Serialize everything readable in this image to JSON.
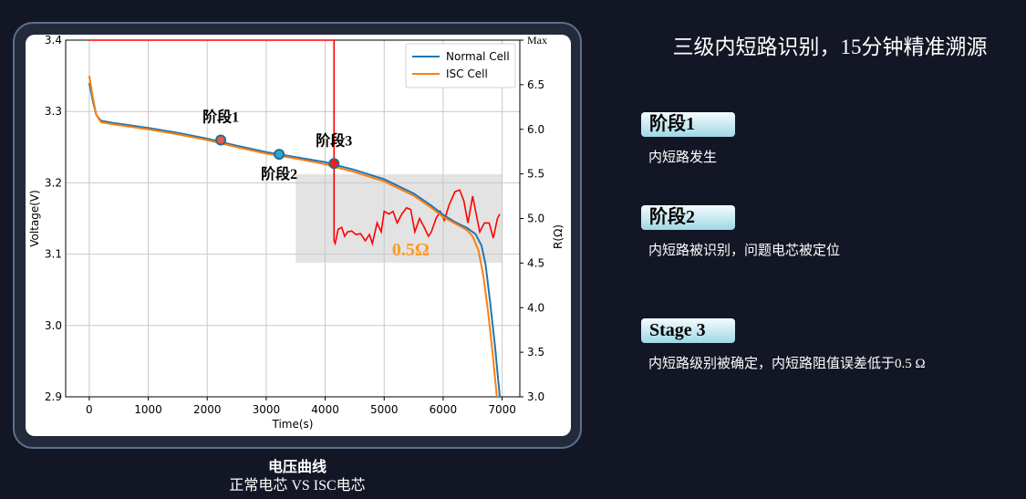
{
  "title": "三级内短路识别，15分钟精准溯源",
  "caption": {
    "title": "电压曲线",
    "subtitle": "正常电芯 VS ISC电芯"
  },
  "stages": [
    {
      "badge": "阶段1",
      "desc": "内短路发生"
    },
    {
      "badge": "阶段2",
      "desc": "内短路被识别，问题电芯被定位"
    },
    {
      "badge": "Stage 3",
      "desc": "内短路级别被确定，内短路阻值误差低于0.5 Ω"
    }
  ],
  "colors": {
    "normal": "#1f77b4",
    "isc": "#ff7f0e",
    "resistance": "#ff0000",
    "annotation": "#ff9a1f",
    "badge": "#a6dbe8"
  },
  "chart_data": {
    "type": "line",
    "xlabel": "Time(s)",
    "ylabel": "Voltage(V)",
    "y2label": "R(Ω)",
    "xlim": [
      -400,
      7300
    ],
    "ylim": [
      2.9,
      3.4
    ],
    "y2lim": [
      3.0,
      7.0
    ],
    "xticks": [
      "0",
      "1000",
      "2000",
      "3000",
      "4000",
      "5000",
      "6000",
      "7000"
    ],
    "yticks": [
      "2.9",
      "3.0",
      "3.1",
      "3.2",
      "3.3",
      "3.4"
    ],
    "y2ticks": [
      "3.0",
      "3.5",
      "4.0",
      "4.5",
      "5.0",
      "5.5",
      "6.0",
      "6.5",
      "Max"
    ],
    "grid": true,
    "legend": "top-right",
    "series": [
      {
        "name": "Normal Cell",
        "axis": "left",
        "x": [
          0,
          60,
          120,
          200,
          400,
          1000,
          1500,
          2000,
          2500,
          3000,
          3500,
          4000,
          4500,
          5000,
          5500,
          5800,
          6000,
          6200,
          6400,
          6550,
          6650,
          6720,
          6800,
          6880,
          6960
        ],
        "y": [
          3.34,
          3.315,
          3.295,
          3.287,
          3.284,
          3.277,
          3.27,
          3.262,
          3.252,
          3.243,
          3.236,
          3.229,
          3.218,
          3.205,
          3.185,
          3.168,
          3.155,
          3.145,
          3.137,
          3.128,
          3.112,
          3.085,
          3.03,
          2.97,
          2.9
        ]
      },
      {
        "name": "ISC Cell",
        "axis": "left",
        "x": [
          0,
          60,
          120,
          200,
          400,
          1000,
          1500,
          2000,
          2500,
          3000,
          3500,
          4000,
          4500,
          5000,
          5500,
          5800,
          6000,
          6200,
          6400,
          6500,
          6600,
          6680,
          6760,
          6840,
          6910
        ],
        "y": [
          3.35,
          3.32,
          3.295,
          3.285,
          3.282,
          3.275,
          3.268,
          3.26,
          3.25,
          3.241,
          3.234,
          3.226,
          3.215,
          3.202,
          3.182,
          3.165,
          3.152,
          3.143,
          3.134,
          3.125,
          3.105,
          3.07,
          3.02,
          2.96,
          2.9
        ]
      },
      {
        "name": "",
        "axis": "right",
        "x": [
          0,
          4150,
          4150,
          4170,
          4220,
          4280,
          4330,
          4380,
          4450,
          4520,
          4600,
          4680,
          4750,
          4800,
          4880,
          4950,
          5000,
          5080,
          5150,
          5220,
          5300,
          5380,
          5450,
          5520,
          5600,
          5680,
          5750,
          5800,
          5880,
          5950,
          6020,
          6100,
          6200,
          6280,
          6350,
          6420,
          6500,
          6560,
          6620,
          6700,
          6780,
          6850,
          6920,
          6960
        ],
        "y": [
          7.0,
          7.0,
          4.75,
          4.72,
          4.88,
          4.9,
          4.8,
          4.85,
          4.86,
          4.82,
          4.83,
          4.75,
          4.82,
          4.72,
          4.95,
          4.85,
          5.08,
          5.05,
          5.08,
          4.95,
          5.05,
          5.12,
          5.1,
          4.85,
          5.0,
          4.9,
          4.8,
          4.85,
          5.0,
          5.08,
          4.98,
          5.15,
          5.3,
          5.32,
          5.2,
          4.95,
          5.25,
          5.05,
          4.85,
          4.95,
          4.95,
          4.78,
          5.0,
          5.05
        ]
      }
    ],
    "markers": [
      {
        "label": "阶段1",
        "x": 2230,
        "y": 3.26,
        "color": "#e8594a"
      },
      {
        "label": "阶段2",
        "x": 3220,
        "y": 3.24,
        "color": "#2fa4dc"
      },
      {
        "label": "阶段3",
        "x": 4150,
        "y": 3.227,
        "color": "#ff1a1a"
      }
    ],
    "highlight": {
      "x": [
        3500,
        7000
      ],
      "y": [
        3.088,
        3.212
      ],
      "label": "0.5Ω"
    }
  }
}
